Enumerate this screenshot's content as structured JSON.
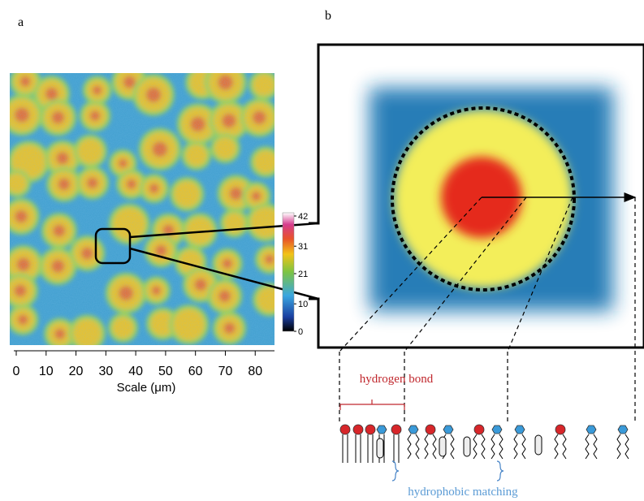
{
  "panel_a": {
    "label": "a",
    "x_axis": {
      "label": "Scale (μm)",
      "lim": [
        0,
        87
      ],
      "ticks": [
        0,
        10,
        20,
        30,
        40,
        50,
        60,
        70,
        80
      ]
    },
    "colorbar": {
      "lim": [
        0,
        42
      ],
      "ticks": [
        0,
        10,
        21,
        31,
        42
      ]
    }
  },
  "panel_b": {
    "label": "b",
    "hydrogen_bond": "hydrogen bond",
    "hydrophobic_matching": "hydrophobic matching"
  }
}
